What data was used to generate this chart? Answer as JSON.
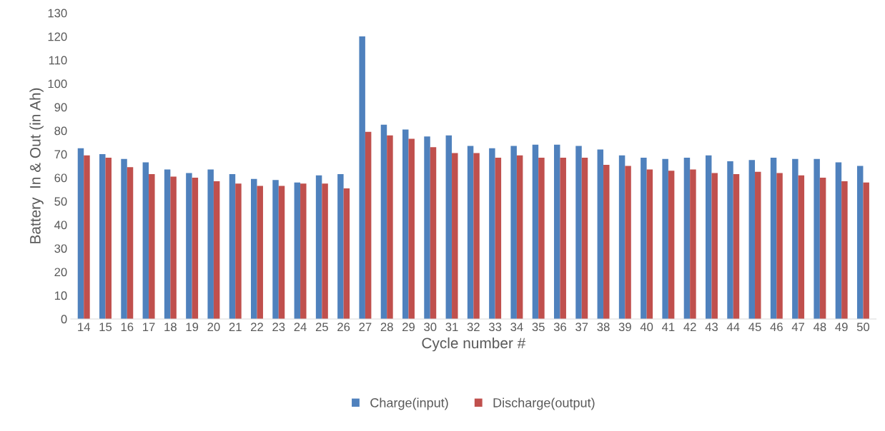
{
  "chart_data": {
    "type": "bar",
    "xlabel": "Cycle number #",
    "ylabel": "Battery  In & Out (in Ah)",
    "categories": [
      "14",
      "15",
      "16",
      "17",
      "18",
      "19",
      "20",
      "21",
      "22",
      "23",
      "24",
      "25",
      "26",
      "27",
      "28",
      "29",
      "30",
      "31",
      "32",
      "33",
      "34",
      "35",
      "36",
      "37",
      "38",
      "39",
      "40",
      "41",
      "42",
      "43",
      "44",
      "45",
      "46",
      "47",
      "48",
      "49",
      "50"
    ],
    "series": [
      {
        "name": "Charge(input)",
        "color": "#4f81bd",
        "values": [
          72.5,
          70,
          68,
          66.5,
          63.5,
          62,
          63.5,
          61.5,
          59.5,
          59,
          58,
          61,
          61.5,
          120,
          82.5,
          80.5,
          77.5,
          78,
          73.5,
          72.5,
          73.5,
          74,
          74,
          73.5,
          72,
          69.5,
          68.5,
          68,
          68.5,
          69.5,
          67,
          67.5,
          68.5,
          68,
          68,
          66.5,
          65
        ]
      },
      {
        "name": "Discharge(output)",
        "color": "#c0504d",
        "values": [
          69.5,
          68.5,
          64.5,
          61.5,
          60.5,
          60,
          58.5,
          57.5,
          56.5,
          56.5,
          57.5,
          57.5,
          55.5,
          79.5,
          78,
          76.5,
          73,
          70.5,
          70.5,
          68.5,
          69.5,
          68.5,
          68.5,
          68.5,
          65.5,
          65,
          63.5,
          63,
          63.5,
          62,
          61.5,
          62.5,
          62,
          61,
          60,
          58.5,
          58
        ]
      }
    ],
    "ylim": [
      0,
      130
    ],
    "yticks": [
      0,
      10,
      20,
      30,
      40,
      50,
      60,
      70,
      80,
      90,
      100,
      110,
      120,
      130
    ],
    "grid": false,
    "legend": "bottom"
  }
}
